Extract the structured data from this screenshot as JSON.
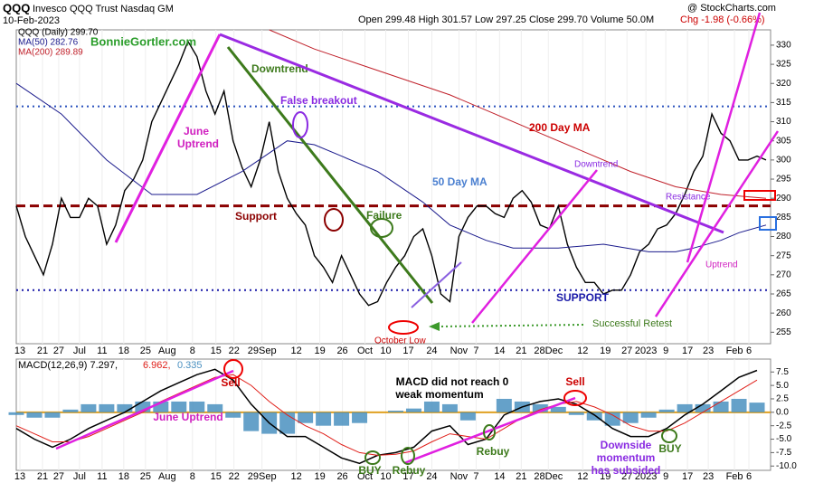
{
  "header": {
    "symbol": "QQQ",
    "name": "Invesco QQQ Trust Nasdaq GM",
    "date": "10-Feb-2023",
    "ohlc": "Open 299.48 High 301.57 Low 297.25 Close 299.70 Volume 50.0M",
    "change": "Chg -1.98 (-0.66%)",
    "source": "@ StockCharts.com"
  },
  "chart_data": [
    {
      "type": "line",
      "legend": [
        "QQQ (Daily) 299.70",
        "MA(50) 282.76",
        "MA(200) 289.89"
      ],
      "watermark": "BonnieGortler.com",
      "xlim": [
        0,
        167
      ],
      "ylim": [
        252,
        334
      ],
      "yticks": [
        255,
        260,
        265,
        270,
        275,
        280,
        285,
        290,
        295,
        300,
        305,
        310,
        315,
        320,
        325,
        330
      ],
      "xticks": [
        {
          "value": 0.8,
          "label": "13"
        },
        {
          "value": 5.8,
          "label": "21"
        },
        {
          "value": 9.4,
          "label": "27"
        },
        {
          "value": 14,
          "label": "Jul"
        },
        {
          "value": 19,
          "label": "11"
        },
        {
          "value": 23.8,
          "label": "18"
        },
        {
          "value": 28.6,
          "label": "25"
        },
        {
          "value": 33.4,
          "label": "Aug"
        },
        {
          "value": 39,
          "label": "8"
        },
        {
          "value": 44.2,
          "label": "15"
        },
        {
          "value": 48.2,
          "label": "22"
        },
        {
          "value": 54.4,
          "label": "29Sep"
        },
        {
          "value": 62,
          "label": "12"
        },
        {
          "value": 67.2,
          "label": "19"
        },
        {
          "value": 72.2,
          "label": "26"
        },
        {
          "value": 77.2,
          "label": "Oct"
        },
        {
          "value": 81.8,
          "label": "10"
        },
        {
          "value": 86.8,
          "label": "17"
        },
        {
          "value": 92,
          "label": "24"
        },
        {
          "value": 98,
          "label": "Nov"
        },
        {
          "value": 101.8,
          "label": "7"
        },
        {
          "value": 107,
          "label": "14"
        },
        {
          "value": 111.8,
          "label": "21"
        },
        {
          "value": 117.8,
          "label": "28Dec"
        },
        {
          "value": 125.4,
          "label": "12"
        },
        {
          "value": 130.4,
          "label": "19"
        },
        {
          "value": 135.2,
          "label": "27"
        },
        {
          "value": 139.4,
          "label": "2023"
        },
        {
          "value": 143.8,
          "label": "9"
        },
        {
          "value": 148.6,
          "label": "17"
        },
        {
          "value": 153.2,
          "label": "23"
        },
        {
          "value": 159,
          "label": "Feb"
        },
        {
          "value": 162.2,
          "label": "6"
        }
      ],
      "reference_lines": [
        {
          "value": 314,
          "color": "#2a52be"
        },
        {
          "value": 266,
          "color": "#1a1aa8"
        },
        {
          "value": 288,
          "color": "#8b0000"
        }
      ],
      "series": [
        {
          "name": "QQQ",
          "color": "#000000",
          "x": [
            0,
            2,
            4,
            6,
            8,
            10,
            12,
            14,
            16,
            18,
            20,
            22,
            24,
            26,
            28,
            30,
            32,
            34,
            36,
            38,
            40,
            42,
            44,
            46,
            48,
            50,
            52,
            54,
            56,
            58,
            60,
            62,
            64,
            66,
            68,
            70,
            72,
            74,
            76,
            78,
            80,
            82,
            84,
            86,
            88,
            90,
            92,
            94,
            96,
            98,
            100,
            102,
            104,
            106,
            108,
            110,
            112,
            114,
            116,
            118,
            120,
            122,
            124,
            126,
            128,
            130,
            132,
            134,
            136,
            138,
            140,
            142,
            144,
            146,
            148,
            150,
            152,
            154,
            156,
            158,
            160,
            162,
            164,
            166
          ],
          "values": [
            288,
            280,
            275,
            270,
            278,
            290,
            285,
            285,
            290,
            288,
            278,
            283,
            292,
            295,
            300,
            310,
            315,
            320,
            325,
            331,
            327,
            318,
            312,
            318,
            305,
            298,
            293,
            300,
            310,
            297,
            290,
            286,
            283,
            275,
            272,
            268,
            275,
            270,
            265,
            262,
            263,
            268,
            272,
            275,
            280,
            282,
            275,
            265,
            263,
            280,
            285,
            288,
            288,
            286,
            285,
            290,
            292,
            289,
            283,
            282,
            288,
            278,
            272,
            268,
            268,
            265,
            266,
            266,
            270,
            276,
            278,
            282,
            283,
            286,
            291,
            297,
            301,
            312,
            307,
            305,
            300,
            300,
            301,
            300
          ]
        },
        {
          "name": "MA(50)",
          "color": "#1a1a8c",
          "x": [
            0,
            10,
            20,
            30,
            40,
            50,
            60,
            66,
            72,
            80,
            90,
            96,
            104,
            110,
            120,
            130,
            140,
            146,
            150,
            156,
            160,
            166
          ],
          "values": [
            320,
            312,
            300,
            291,
            291,
            297,
            305,
            304,
            301,
            297,
            289,
            283,
            279,
            277,
            277,
            278,
            276,
            276,
            277,
            279,
            281,
            283
          ]
        },
        {
          "name": "MA(200)",
          "color": "#c0202a",
          "x": [
            56,
            66,
            76,
            86,
            96,
            106,
            116,
            126,
            136,
            146,
            156,
            166
          ],
          "values": [
            334,
            329,
            325,
            321,
            317,
            312,
            307,
            302,
            297,
            293,
            291,
            290
          ]
        }
      ],
      "annotations": {
        "june_uptrend": [
          "June",
          "Uptrend"
        ],
        "downtrend": "Downtrend",
        "false_breakout": "False breakout",
        "ma200": "200 Day MA",
        "ma50": "50 Day MA",
        "support": "Support",
        "failure": "Failure",
        "october_low": "October Low",
        "retest": "Successful Retest",
        "support2": "SUPPORT",
        "downtrend2": "Downtrend",
        "resistance": "Resistance",
        "uptrend": "Uptrend"
      }
    },
    {
      "type": "macd",
      "legend": [
        "MACD(12,26,9) 7.297,",
        "6.962,",
        "0.335"
      ],
      "xlim": [
        0,
        167
      ],
      "ylim": [
        -10.8,
        9.9
      ],
      "yticks": [
        {
          "value": 7.5,
          "label": "7.5"
        },
        {
          "value": 5,
          "label": "5.0"
        },
        {
          "value": 2.5,
          "label": "2.5"
        },
        {
          "value": 0,
          "label": "0.0"
        },
        {
          "value": -2.5,
          "label": "-2.5"
        },
        {
          "value": -5,
          "label": "-5.0"
        },
        {
          "value": -7.5,
          "label": "-7.5"
        },
        {
          "value": -10,
          "label": "-10.0"
        }
      ],
      "x": [
        0,
        4,
        8,
        12,
        16,
        20,
        24,
        28,
        32,
        36,
        40,
        44,
        48,
        52,
        56,
        60,
        64,
        68,
        72,
        76,
        80,
        84,
        88,
        92,
        96,
        100,
        104,
        108,
        112,
        116,
        120,
        124,
        128,
        132,
        136,
        140,
        144,
        148,
        152,
        156,
        160,
        164
      ],
      "series": [
        {
          "name": "MACD",
          "color": "#000000",
          "values": [
            -3,
            -5,
            -6.5,
            -5,
            -3,
            -1.5,
            0,
            2,
            4,
            5.5,
            7,
            8,
            6,
            1.5,
            -2,
            -4.5,
            -4.5,
            -6.5,
            -8.5,
            -9.5,
            -8,
            -7.5,
            -6.5,
            -3.5,
            -2.5,
            -6,
            -5,
            -0.5,
            1,
            2,
            2.5,
            1.5,
            -0.5,
            -3,
            -4.5,
            -4.5,
            -3,
            -0.5,
            1.5,
            4,
            6.5,
            7.8
          ]
        },
        {
          "name": "Signal",
          "color": "#e0201a",
          "values": [
            -2.5,
            -4,
            -5.5,
            -5.5,
            -4.5,
            -3,
            -1.5,
            0,
            2,
            3.5,
            5,
            6.5,
            7,
            5,
            2,
            -0.5,
            -2.5,
            -4,
            -6,
            -7.5,
            -8,
            -7.8,
            -7.2,
            -5.5,
            -4,
            -4.5,
            -5,
            -3,
            -1,
            0.5,
            1.5,
            2,
            1,
            -0.5,
            -2.5,
            -3.5,
            -3.5,
            -2,
            0,
            2,
            4,
            6
          ]
        },
        {
          "name": "Histogram",
          "color": "#4a90c0",
          "values": [
            -0.5,
            -1,
            -1,
            0.5,
            1.5,
            1.5,
            1.5,
            2,
            2,
            2,
            2,
            1.5,
            -1,
            -3.5,
            -4,
            -4,
            -2,
            -2.5,
            -2.5,
            -2,
            0,
            0.3,
            0.7,
            2,
            1.5,
            -1.5,
            0,
            2.5,
            2,
            1.5,
            1,
            -0.5,
            -1.5,
            -2.5,
            -2,
            -1,
            0.5,
            1.5,
            1.5,
            2,
            2.5,
            1.8
          ]
        }
      ],
      "annotations": {
        "sell1": "Sell",
        "june_uptrend": "June Uptrend",
        "not_zero": [
          "MACD did not reach 0",
          "weak momentum"
        ],
        "sell2": "Sell",
        "buy1": "BUY",
        "rebuy1": "Rebuy",
        "rebuy2": "Rebuy",
        "subsided": [
          "Downside",
          "momentum",
          "has subsided"
        ],
        "buy2": "BUY"
      }
    }
  ]
}
